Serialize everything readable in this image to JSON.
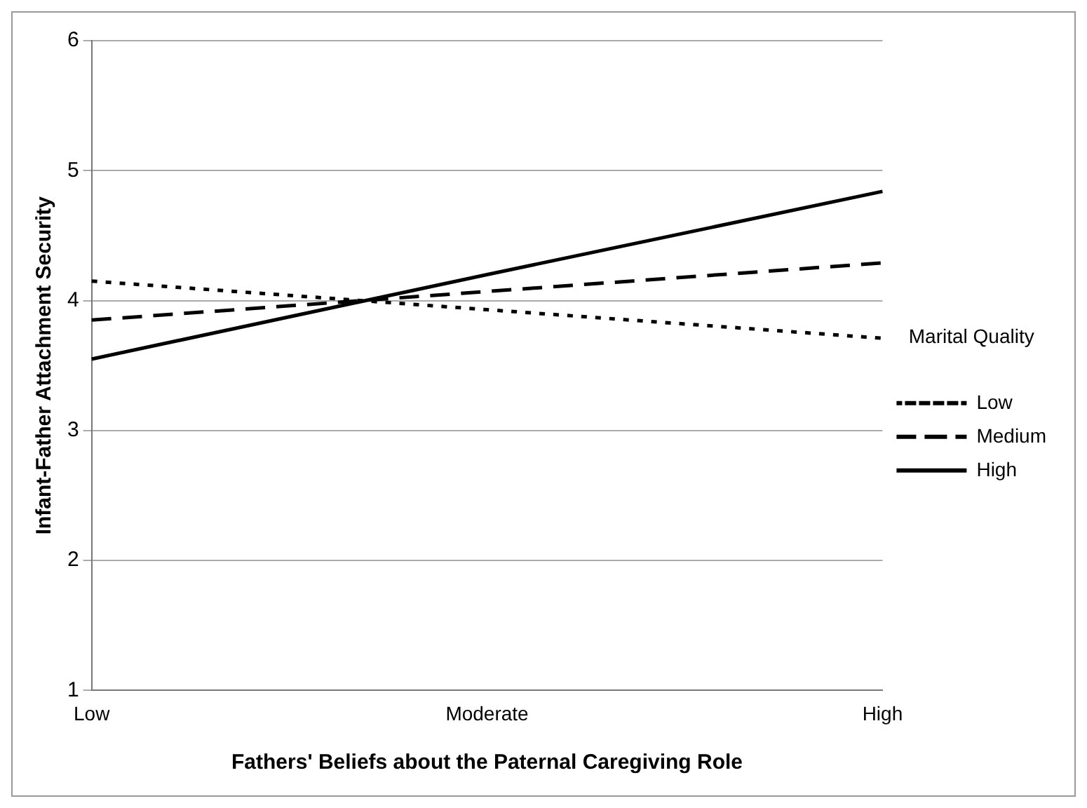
{
  "chart_data": {
    "type": "line",
    "xlabel": "Fathers' Beliefs about the Paternal Caregiving Role",
    "ylabel": "Infant-Father Attachment Security",
    "legend_title": "Marital Quality",
    "categories": [
      "Low",
      "Moderate",
      "High"
    ],
    "series": [
      {
        "name": "Low",
        "color": "#000000",
        "line_style": "dotted",
        "values": [
          4.15,
          3.93,
          3.71
        ]
      },
      {
        "name": "Medium",
        "color": "#000000",
        "line_style": "dashed",
        "values": [
          3.85,
          4.07,
          4.29
        ]
      },
      {
        "name": "High",
        "color": "#000000",
        "line_style": "solid",
        "values": [
          3.55,
          4.2,
          4.84
        ]
      }
    ],
    "ylim": [
      1,
      6
    ],
    "yticks": [
      1,
      2,
      3,
      4,
      5,
      6
    ],
    "grid": "y",
    "legend": "right",
    "marker": "none"
  }
}
